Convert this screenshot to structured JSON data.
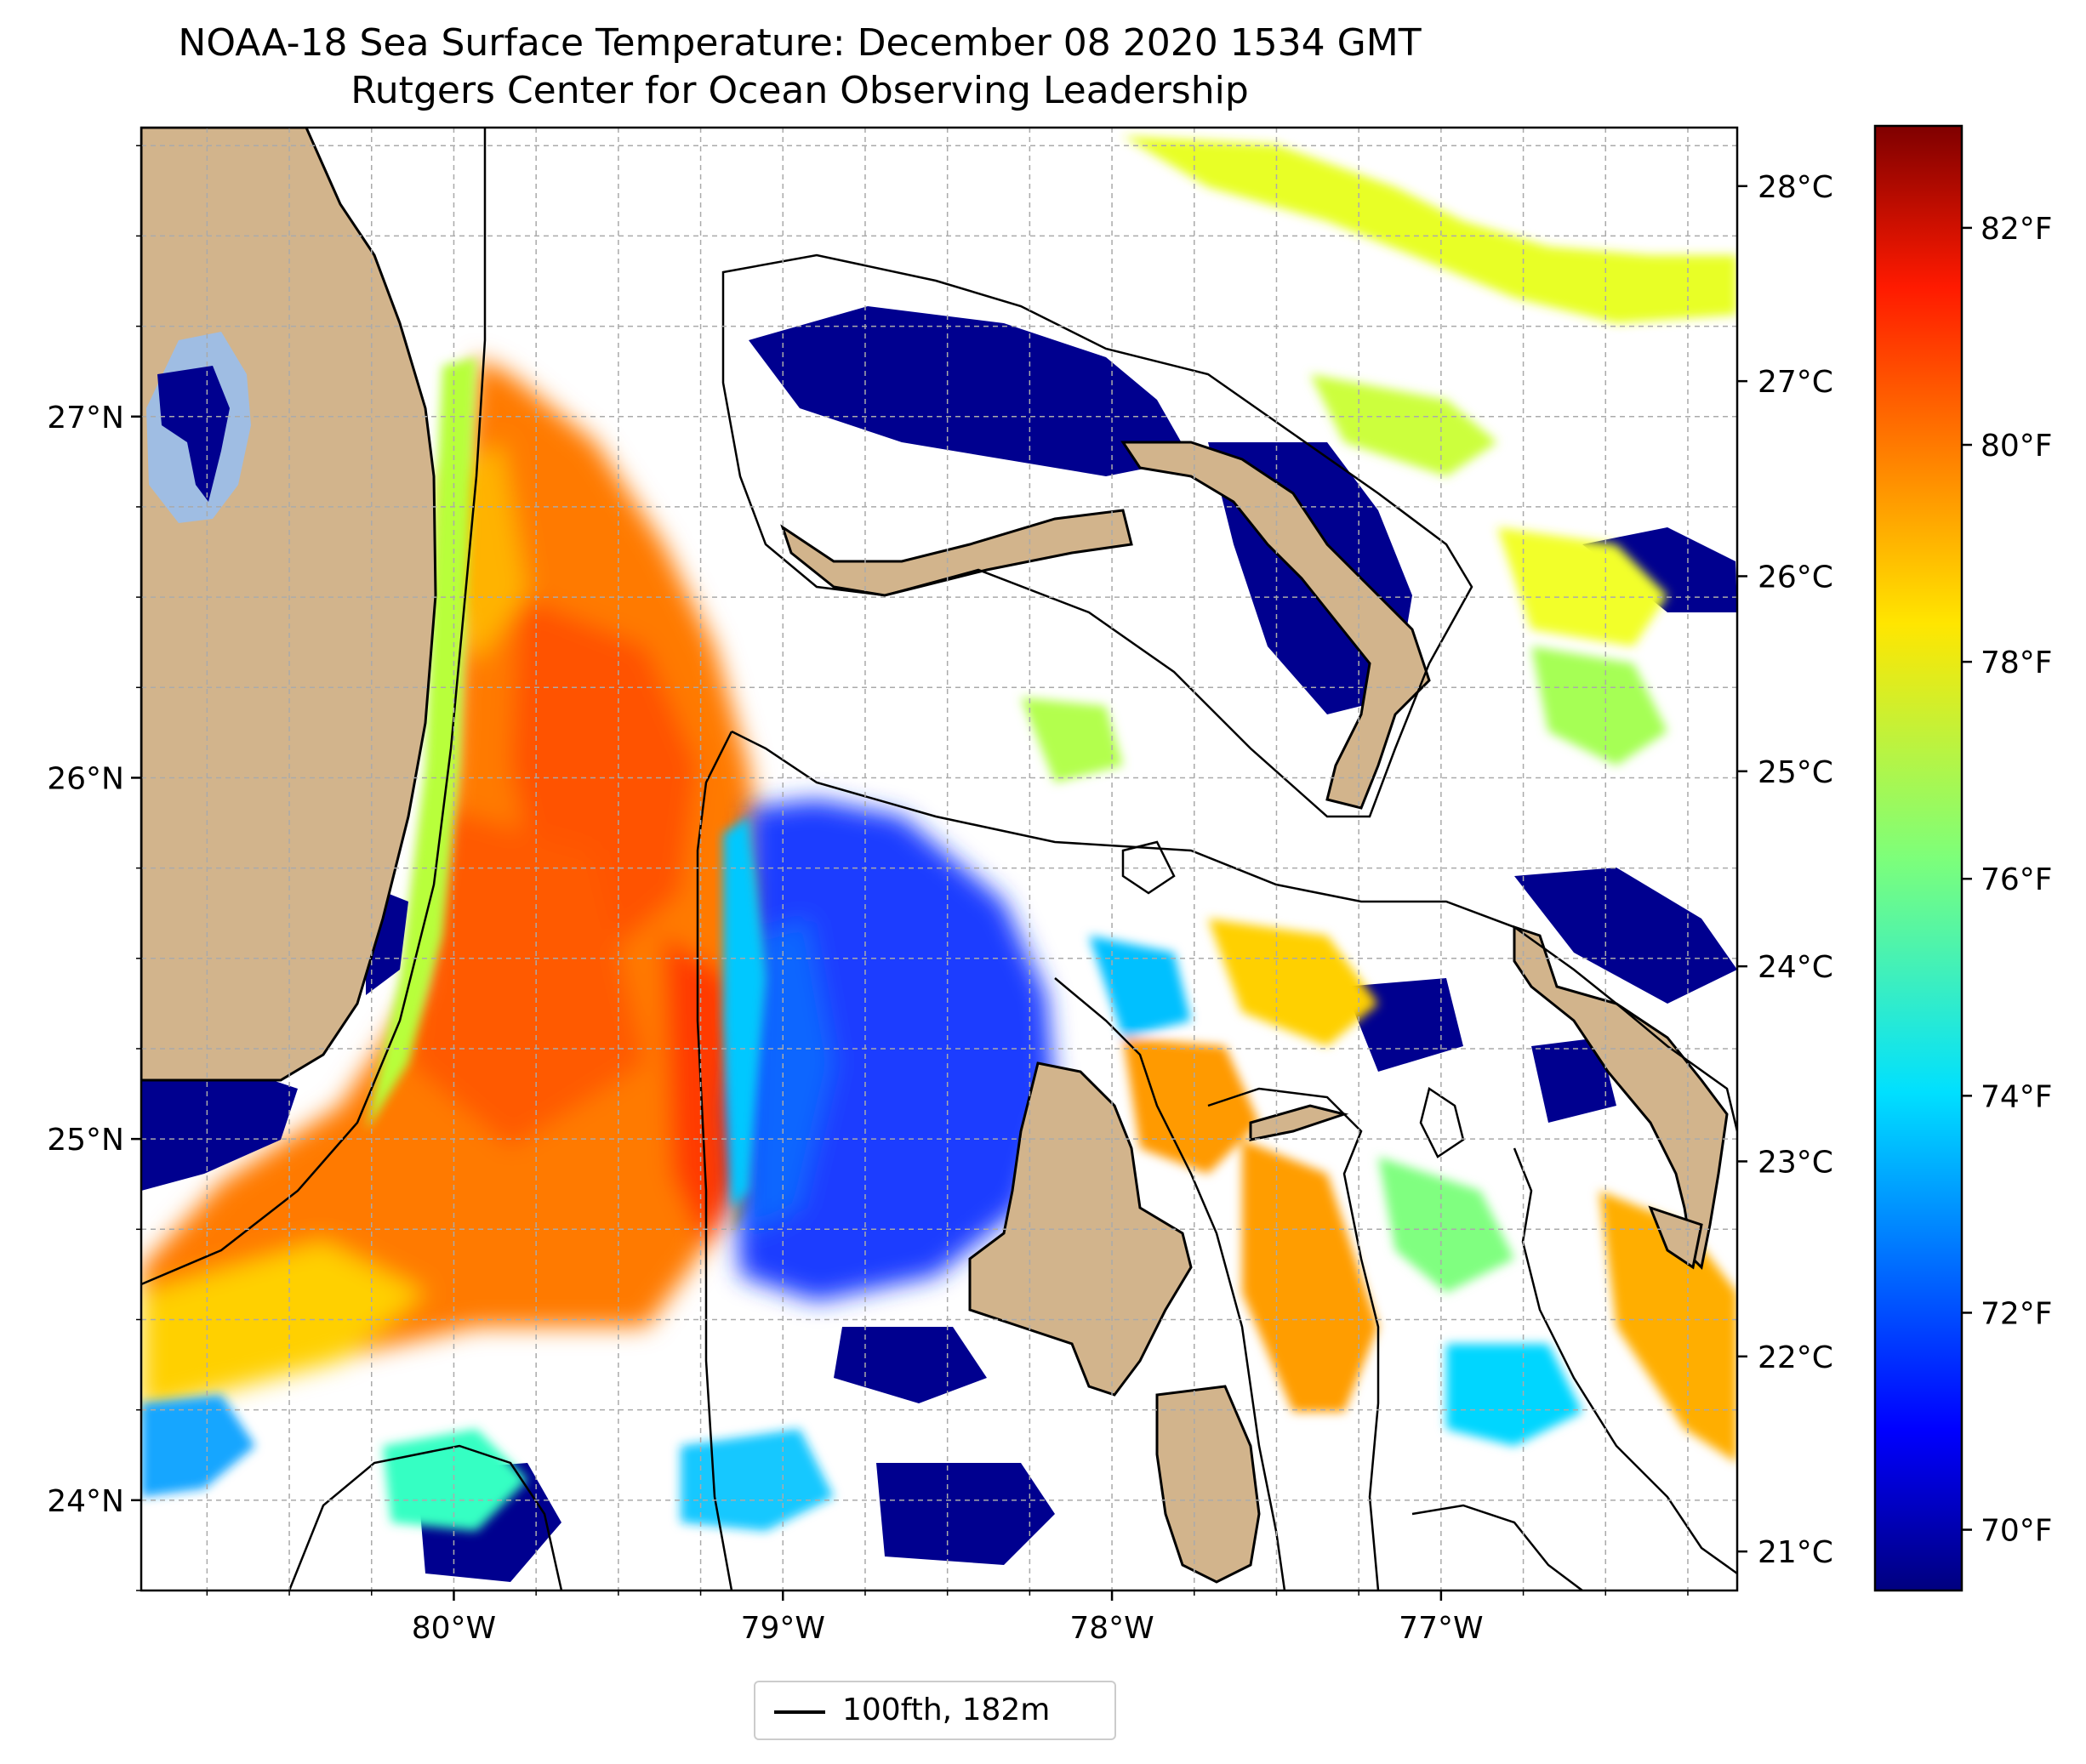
{
  "title": "NOAA-18 Sea Surface Temperature: December 08 2020 1534 GMT",
  "subtitle": "Rutgers Center for Ocean Observing Leadership",
  "map": {
    "longitude_range": [
      -80.95,
      -76.1
    ],
    "latitude_range": [
      23.75,
      27.8
    ],
    "lon_ticks": [
      "80°W",
      "79°W",
      "78°W",
      "77°W"
    ],
    "lat_ticks": [
      "27°N",
      "26°N",
      "25°N",
      "24°N"
    ],
    "gridlines": true,
    "land_color": "#d2b48c",
    "lake_color": "#9fbde3",
    "no_data_color": "#ffffff"
  },
  "colorbar": {
    "colormap": "jet",
    "celsius_ticks": [
      "28°C",
      "27°C",
      "26°C",
      "25°C",
      "24°C",
      "23°C",
      "22°C",
      "21°C"
    ],
    "fahrenheit_ticks": [
      "82°F",
      "80°F",
      "78°F",
      "76°F",
      "74°F",
      "72°F",
      "70°F"
    ],
    "range_celsius": [
      20.8,
      28.3
    ]
  },
  "legend": {
    "entries": [
      {
        "label": "100fth, 182m",
        "color": "#000000"
      }
    ],
    "placement": "bottom-center"
  },
  "regions": {
    "florida_label": "",
    "bahamas_label": ""
  }
}
